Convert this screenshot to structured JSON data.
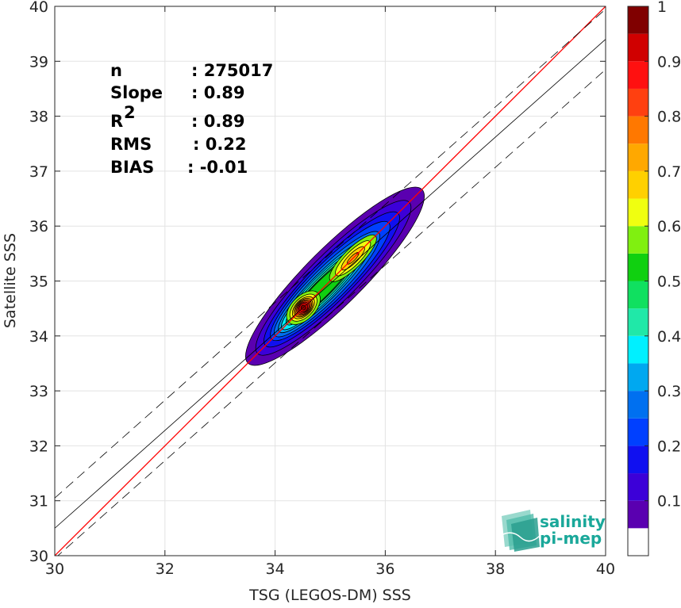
{
  "chart_data": {
    "type": "scatter",
    "subtype": "density-contour",
    "xlabel": "TSG (LEGOS-DM) SSS",
    "ylabel": "Satellite SSS",
    "xlim": [
      30,
      40
    ],
    "ylim": [
      30,
      40
    ],
    "xticks": [
      "30",
      "32",
      "34",
      "36",
      "38",
      "40"
    ],
    "yticks": [
      "30",
      "31",
      "32",
      "33",
      "34",
      "35",
      "36",
      "37",
      "38",
      "39",
      "40"
    ],
    "grid": true,
    "stats": [
      {
        "name": "n",
        "value": ": 275017"
      },
      {
        "name": "Slope",
        "value": ": 0.89"
      },
      {
        "name": "R",
        "sup": "2",
        "value": ": 0.89"
      },
      {
        "name": "RMS",
        "value": ": 0.22"
      },
      {
        "name": "BIAS",
        "value": ": -0.01"
      }
    ],
    "lines": {
      "identity": {
        "slope": 1,
        "intercept": 0,
        "color": "#ff0000"
      },
      "regression": {
        "slope": 0.89,
        "intercept_at_30": 30.5,
        "color": "#000000"
      },
      "envelope_offset": 0.55
    },
    "density_peaks": [
      {
        "x": 34.5,
        "y": 34.5,
        "value": 1.0
      },
      {
        "x": 35.5,
        "y": 35.5,
        "value": 0.68
      }
    ],
    "colorbar": {
      "ticks": [
        "0.1",
        "0.2",
        "0.3",
        "0.4",
        "0.5",
        "0.6",
        "0.7",
        "0.8",
        "0.9",
        "1"
      ],
      "levels": [
        0.05,
        0.1,
        0.15,
        0.2,
        0.25,
        0.3,
        0.35,
        0.4,
        0.45,
        0.5,
        0.55,
        0.6,
        0.65,
        0.7,
        0.75,
        0.8,
        0.85,
        0.9,
        0.95,
        1.0
      ],
      "colors": [
        "#ffffff",
        "#5a00b0",
        "#3c00d8",
        "#1010f0",
        "#0040ff",
        "#0070f0",
        "#00a8f0",
        "#00f0ff",
        "#20e8a8",
        "#10e060",
        "#10d010",
        "#80f010",
        "#f0ff10",
        "#ffd000",
        "#ffa800",
        "#ff7800",
        "#ff4010",
        "#ff1010",
        "#d00000",
        "#800000"
      ]
    }
  },
  "logo": {
    "line1": "salinity",
    "line2": "pi-mep",
    "color": "#1aa89a"
  }
}
